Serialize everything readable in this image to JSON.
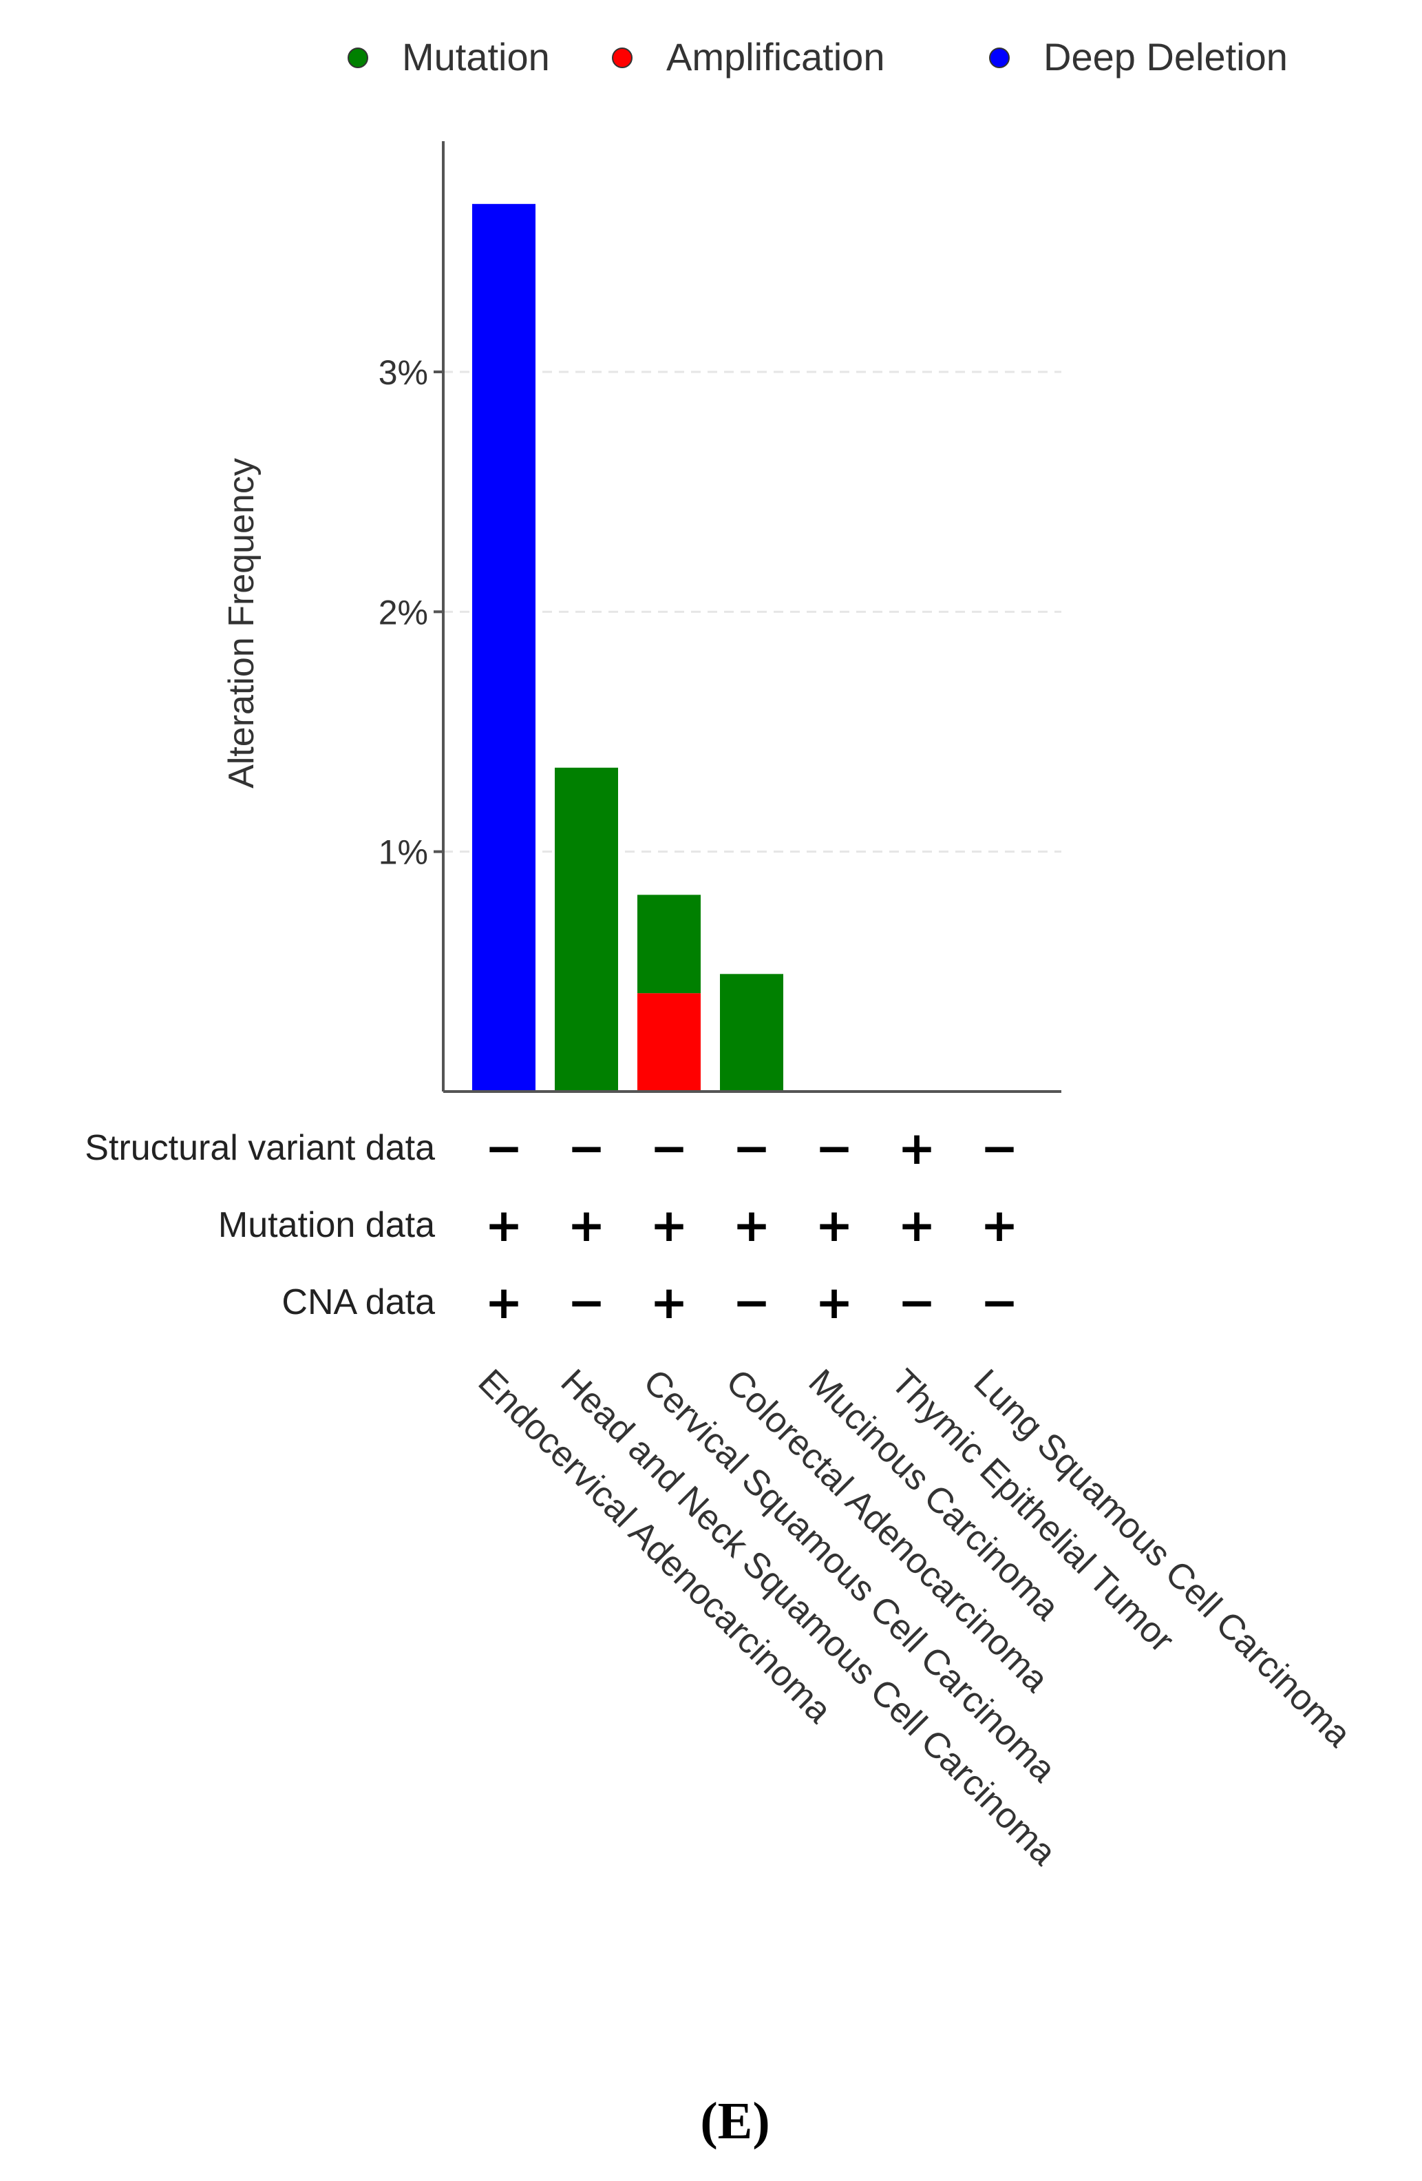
{
  "chart_data": {
    "type": "bar",
    "stacked": true,
    "title": "",
    "ylabel": "Alteration Frequency",
    "xlabel": "",
    "ylim": [
      0,
      3.8
    ],
    "yticks": [
      1,
      2,
      3
    ],
    "ytick_labels": [
      "1%",
      "2%",
      "3%"
    ],
    "grid": "horizontal-dashed",
    "legend_position": "top",
    "categories": [
      "Endocervical Adenocarcinoma",
      "Head and Neck Squamous Cell Carcinoma",
      "Cervical Squamous Cell Carcinoma",
      "Colorectal Adenocarcinoma",
      "Mucinous Carcinoma",
      "Thymic Epithelial Tumor",
      "Lung Squamous Cell Carcinoma"
    ],
    "series": [
      {
        "name": "Mutation",
        "color": "#008000",
        "values": [
          0,
          1.35,
          0.41,
          0.49,
          0,
          0,
          0
        ]
      },
      {
        "name": "Amplification",
        "color": "#ff0000",
        "values": [
          0,
          0,
          0.41,
          0,
          0,
          0,
          0
        ]
      },
      {
        "name": "Deep Deletion",
        "color": "#0000ff",
        "values": [
          3.7,
          0,
          0,
          0,
          0,
          0,
          0
        ]
      }
    ],
    "stack_order": [
      "Amplification",
      "Mutation",
      "Deep Deletion"
    ],
    "data_rows": [
      {
        "label": "Structural variant data",
        "values": [
          "−",
          "−",
          "−",
          "−",
          "−",
          "+",
          "−"
        ]
      },
      {
        "label": "Mutation data",
        "values": [
          "+",
          "+",
          "+",
          "+",
          "+",
          "+",
          "+"
        ]
      },
      {
        "label": "CNA data",
        "values": [
          "+",
          "−",
          "+",
          "−",
          "+",
          "−",
          "−"
        ]
      }
    ]
  },
  "panel_label": "(E)"
}
